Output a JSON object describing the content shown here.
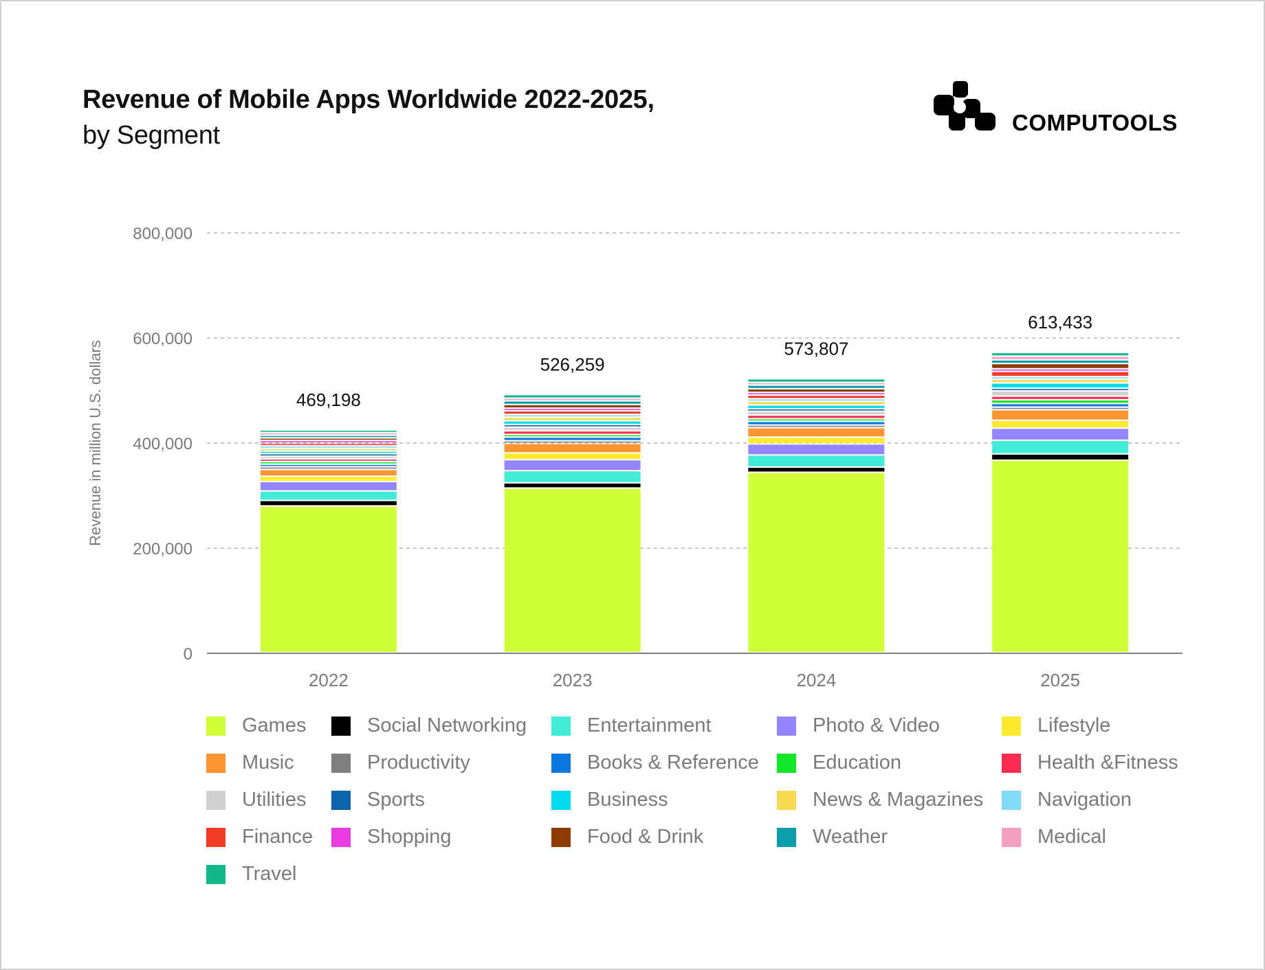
{
  "header": {
    "title": "Revenue of Mobile Apps Worldwide 2022-2025,",
    "subtitle": "by Segment",
    "brand": "COMPUTOOLS",
    "brand_icon": "computools-logo-icon"
  },
  "chart_data": {
    "type": "bar",
    "stacked": true,
    "title": "Revenue of Mobile Apps Worldwide 2022-2025, by Segment",
    "xlabel": "",
    "ylabel": "Revenue in million U.S. dollars",
    "ylim": [
      0,
      800000
    ],
    "yticks": [
      0,
      200000,
      400000,
      600000,
      800000
    ],
    "ytick_labels": [
      "0",
      "200,000",
      "400,000",
      "600,000",
      "800,000"
    ],
    "grid": true,
    "legend_position": "bottom",
    "categories": [
      "2022",
      "2023",
      "2024",
      "2025"
    ],
    "totals": [
      469198,
      526259,
      573807,
      613433
    ],
    "total_labels": [
      "469,198",
      "526,259",
      "573,807",
      "613,433"
    ],
    "series": [
      {
        "name": "Games",
        "color": "#d0ff38",
        "values": [
          279000,
          313000,
          343000,
          366000
        ]
      },
      {
        "name": "Social Networking",
        "color": "#000000",
        "values": [
          10500,
          10000,
          10000,
          12000
        ]
      },
      {
        "name": "Entertainment",
        "color": "#40ecd6",
        "values": [
          18000,
          23000,
          23000,
          26000
        ]
      },
      {
        "name": "Photo & Video",
        "color": "#9285ff",
        "values": [
          18000,
          21000,
          21000,
          23000
        ]
      },
      {
        "name": "Lifestyle",
        "color": "#ffea30",
        "values": [
          10000,
          13000,
          13000,
          15000
        ]
      },
      {
        "name": "Music",
        "color": "#ff9433",
        "values": [
          13000,
          18000,
          18000,
          20000
        ]
      },
      {
        "name": "Productivity",
        "color": "#7f7f7f",
        "values": [
          5000,
          5000,
          5000,
          5000
        ]
      },
      {
        "name": "Books & Reference",
        "color": "#0878e0",
        "values": [
          5000,
          7000,
          7000,
          7000
        ]
      },
      {
        "name": "Education",
        "color": "#12e629",
        "values": [
          5000,
          5000,
          5000,
          7000
        ]
      },
      {
        "name": "Health &Fitness",
        "color": "#ff2b50",
        "values": [
          5000,
          7000,
          7000,
          7000
        ]
      },
      {
        "name": "Utilities",
        "color": "#d1d1d1",
        "values": [
          5000,
          7000,
          7000,
          10000
        ]
      },
      {
        "name": "Sports",
        "color": "#0e63ad",
        "values": [
          5000,
          5000,
          5000,
          5000
        ]
      },
      {
        "name": "Business",
        "color": "#03daf0",
        "values": [
          5000,
          7000,
          7000,
          10000
        ]
      },
      {
        "name": "News & Magazines",
        "color": "#fad952",
        "values": [
          5000,
          7000,
          7000,
          7000
        ]
      },
      {
        "name": "Navigation",
        "color": "#80daf8",
        "values": [
          5000,
          5000,
          5000,
          5000
        ]
      },
      {
        "name": "Finance",
        "color": "#f23b27",
        "values": [
          5000,
          7000,
          7000,
          10000
        ]
      },
      {
        "name": "Shopping",
        "color": "#e83be0",
        "values": [
          5000,
          5000,
          5000,
          5000
        ]
      },
      {
        "name": "Food & Drink",
        "color": "#8f3a00",
        "values": [
          5000,
          7000,
          7000,
          10000
        ]
      },
      {
        "name": "Weather",
        "color": "#0a9eaa",
        "values": [
          5000,
          7000,
          7000,
          7000
        ]
      },
      {
        "name": "Medical",
        "color": "#f5a0c0",
        "values": [
          5000,
          5000,
          5000,
          7000
        ]
      },
      {
        "name": "Travel",
        "color": "#13b88a",
        "values": [
          5000,
          7000,
          7000,
          7000
        ]
      }
    ]
  }
}
